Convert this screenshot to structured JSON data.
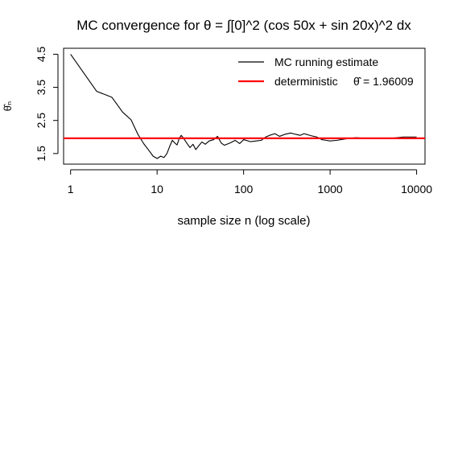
{
  "chart_data": {
    "type": "line",
    "title": "MC convergence for  θ  = ∫[0]^2 (cos 50x + sin 20x)^2 dx",
    "xlabel": "sample size  n  (log scale)",
    "ylabel": "θ̂ₙ",
    "x_scale": "log",
    "xlim": [
      0.83,
      12500
    ],
    "ylim": [
      1.18,
      4.68
    ],
    "x_ticks": [
      1,
      10,
      100,
      1000,
      10000
    ],
    "x_tick_labels": [
      "1",
      "10",
      "100",
      "1000",
      "10000"
    ],
    "y_ticks": [
      1.5,
      2.5,
      3.5,
      4.5
    ],
    "y_tick_labels": [
      "1.5",
      "2.5",
      "3.5",
      "4.5"
    ],
    "grid": false,
    "legend_position": "top-right",
    "series": [
      {
        "name": "MC running estimate",
        "color": "#000000",
        "x": [
          1,
          2,
          3,
          4,
          5,
          6,
          7,
          8,
          9,
          10,
          11,
          12,
          13,
          14,
          15,
          16,
          17,
          18,
          19,
          20,
          22,
          24,
          26,
          28,
          30,
          33,
          36,
          40,
          45,
          50,
          55,
          60,
          70,
          80,
          90,
          100,
          120,
          140,
          160,
          180,
          200,
          230,
          260,
          300,
          350,
          400,
          450,
          500,
          600,
          700,
          800,
          900,
          1000,
          1200,
          1500,
          2000,
          2500,
          3000,
          4000,
          5000,
          6000,
          7000,
          8000,
          10000
        ],
        "y": [
          4.5,
          3.38,
          3.2,
          2.75,
          2.52,
          2.08,
          1.8,
          1.6,
          1.42,
          1.35,
          1.42,
          1.38,
          1.5,
          1.72,
          1.9,
          1.82,
          1.76,
          1.95,
          2.05,
          1.98,
          1.82,
          1.68,
          1.78,
          1.62,
          1.72,
          1.85,
          1.78,
          1.88,
          1.92,
          2.02,
          1.82,
          1.75,
          1.82,
          1.9,
          1.8,
          1.92,
          1.86,
          1.88,
          1.9,
          2.0,
          2.05,
          2.1,
          2.02,
          2.08,
          2.12,
          2.08,
          2.05,
          2.1,
          2.04,
          2.0,
          1.92,
          1.9,
          1.88,
          1.9,
          1.94,
          1.98,
          1.96,
          1.95,
          1.97,
          1.96,
          1.98,
          2.0,
          2.0,
          2.0
        ]
      },
      {
        "name": "deterministic",
        "color": "#ff0000",
        "hline": 1.96009
      }
    ],
    "legend": {
      "entries": [
        {
          "label": "MC running estimate",
          "color": "#000000"
        },
        {
          "label": "deterministic",
          "symbol": "θ̂",
          "value_text": "= 1.96009",
          "color": "#ff0000"
        }
      ]
    }
  }
}
